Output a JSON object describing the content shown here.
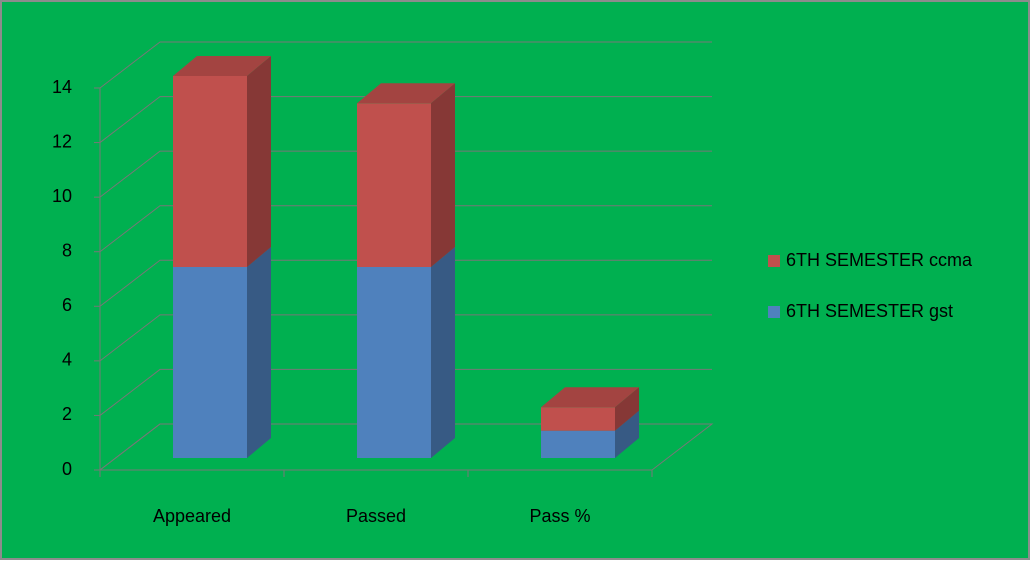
{
  "chart_data": {
    "type": "bar3d_stacked",
    "categories": [
      "Appeared",
      "Passed",
      "Pass %"
    ],
    "series": [
      {
        "name": "6TH SEMESTER gst",
        "color": "#4f81bd",
        "values": [
          7,
          7,
          1
        ]
      },
      {
        "name": "6TH SEMESTER ccma",
        "color": "#c0504d",
        "values": [
          7,
          6,
          0.86
        ]
      }
    ],
    "ylim": [
      0,
      14
    ],
    "yticks": [
      0,
      2,
      4,
      6,
      8,
      10,
      12,
      14
    ],
    "grid": true,
    "legend": "right",
    "background": "#00b050"
  }
}
